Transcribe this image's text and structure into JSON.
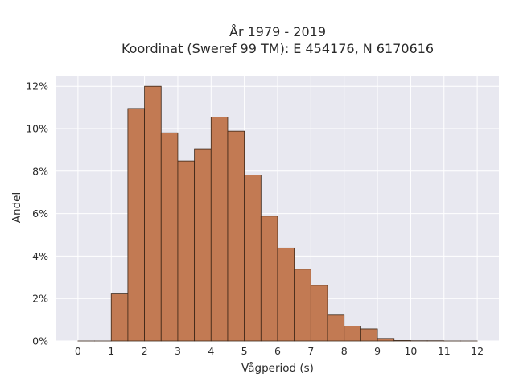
{
  "chart_data": {
    "type": "bar",
    "title": [
      "År 1979 - 2019",
      "Koordinat (Sweref 99 TM): E 454176, N 6170616"
    ],
    "xlabel": "Vågperiod (s)",
    "ylabel": "Andel",
    "xlim": [
      -0.65,
      12.65
    ],
    "ylim": [
      0,
      0.125
    ],
    "x_ticks": [
      0,
      1,
      2,
      3,
      4,
      5,
      6,
      7,
      8,
      9,
      10,
      11,
      12
    ],
    "x_tick_labels": [
      "0",
      "1",
      "2",
      "3",
      "4",
      "5",
      "6",
      "7",
      "8",
      "9",
      "10",
      "11",
      "12"
    ],
    "y_ticks": [
      0,
      0.02,
      0.04,
      0.06,
      0.08,
      0.1,
      0.12
    ],
    "y_tick_labels": [
      "0%",
      "2%",
      "4%",
      "6%",
      "8%",
      "10%",
      "12%"
    ],
    "bin_width": 0.5,
    "bins": [
      {
        "x0": 0.0,
        "value": 0.0
      },
      {
        "x0": 0.5,
        "value": 0.0
      },
      {
        "x0": 1.0,
        "value": 0.0225
      },
      {
        "x0": 1.5,
        "value": 0.1095
      },
      {
        "x0": 2.0,
        "value": 0.12
      },
      {
        "x0": 2.5,
        "value": 0.098
      },
      {
        "x0": 3.0,
        "value": 0.0848
      },
      {
        "x0": 3.5,
        "value": 0.0905
      },
      {
        "x0": 4.0,
        "value": 0.1055
      },
      {
        "x0": 4.5,
        "value": 0.0988
      },
      {
        "x0": 5.0,
        "value": 0.0782
      },
      {
        "x0": 5.5,
        "value": 0.0588
      },
      {
        "x0": 6.0,
        "value": 0.0438
      },
      {
        "x0": 6.5,
        "value": 0.0338
      },
      {
        "x0": 7.0,
        "value": 0.0262
      },
      {
        "x0": 7.5,
        "value": 0.0122
      },
      {
        "x0": 8.0,
        "value": 0.007
      },
      {
        "x0": 8.5,
        "value": 0.0057
      },
      {
        "x0": 9.0,
        "value": 0.0012
      },
      {
        "x0": 9.5,
        "value": 0.0002
      },
      {
        "x0": 10.0,
        "value": 0.0001
      },
      {
        "x0": 10.5,
        "value": 0.0001
      },
      {
        "x0": 11.0,
        "value": 0.0
      },
      {
        "x0": 11.5,
        "value": 0.0
      }
    ],
    "grid": true,
    "colors": {
      "bar": "#c27a53",
      "edge": "#3b2516",
      "plot_bg": "#e8e8f0",
      "grid": "#ffffff"
    }
  }
}
